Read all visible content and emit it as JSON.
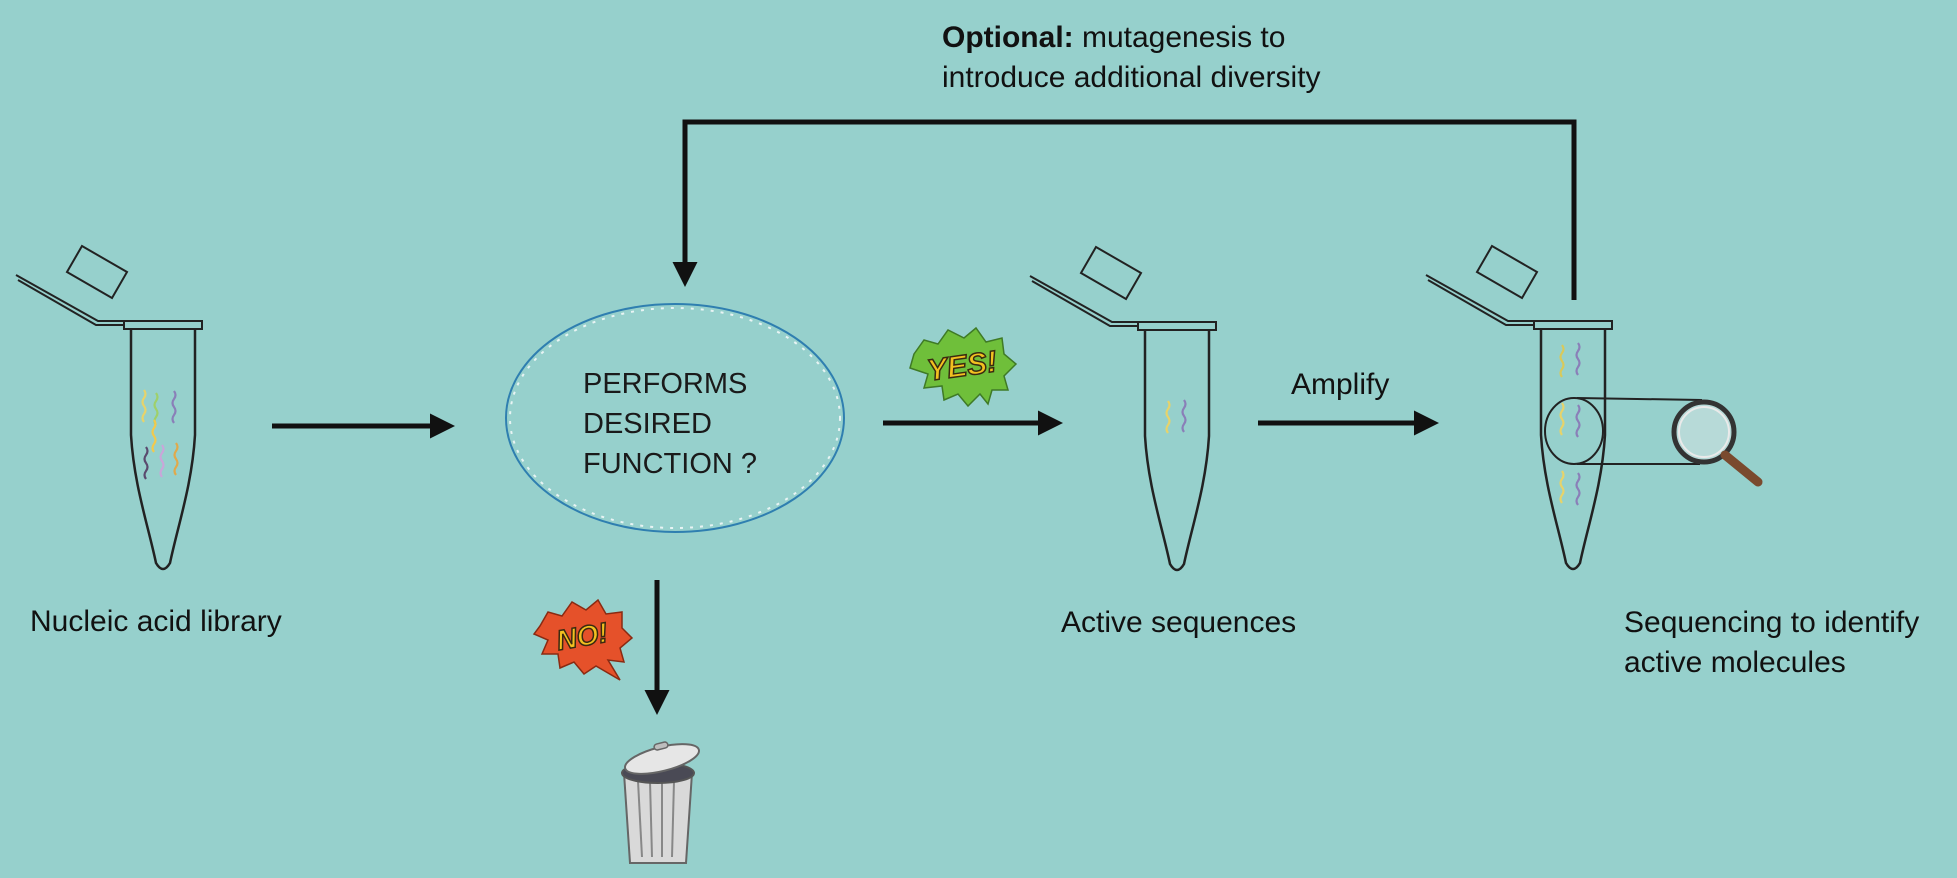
{
  "optional_note": {
    "bold": "Optional:",
    "line1": " mutagenesis to",
    "line2": "introduce additional diversity"
  },
  "decision": {
    "line1": "PERFORMS",
    "line2": "DESIRED",
    "line3": "FUNCTION ?"
  },
  "labels": {
    "library": "Nucleic acid library",
    "active": "Active sequences",
    "amplify": "Amplify",
    "sequencing_line1": "Sequencing to identify",
    "sequencing_line2": "active molecules"
  },
  "bubbles": {
    "yes": "YES!",
    "no": "NO!"
  },
  "colors": {
    "background": "#96d0cc",
    "arrow": "#111111",
    "ellipse_stroke": "#2f7fb0",
    "yes_bubble": "#6fbf3a",
    "yes_text": "#f2c020",
    "no_bubble": "#e5512a",
    "no_text": "#f2c020"
  },
  "icons": [
    "microcentrifuge-tube-icon",
    "magnifier-icon",
    "trash-can-icon",
    "speech-burst-icon"
  ]
}
